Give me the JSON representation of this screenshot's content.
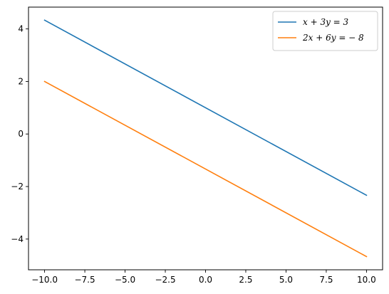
{
  "chart_data": {
    "type": "line",
    "title": "",
    "xlabel": "",
    "ylabel": "",
    "xlim": [
      -11.0,
      11.0
    ],
    "ylim": [
      -5.17,
      4.83
    ],
    "x_ticks": [
      -10.0,
      -7.5,
      -5.0,
      -2.5,
      0.0,
      2.5,
      5.0,
      7.5,
      10.0
    ],
    "x_tick_labels": [
      "−10.0",
      "−7.5",
      "−5.0",
      "−2.5",
      "0.0",
      "2.5",
      "5.0",
      "7.5",
      "10.0"
    ],
    "y_ticks": [
      -4,
      -2,
      0,
      2,
      4
    ],
    "y_tick_labels": [
      "−4",
      "−2",
      "0",
      "2",
      "4"
    ],
    "grid": false,
    "legend_position": "top-right",
    "series": [
      {
        "name": "x + 3y = 3",
        "color": "#1f77b4",
        "x": [
          -10,
          10
        ],
        "y": [
          4.333,
          -2.333
        ]
      },
      {
        "name": "2x + 6y = − 8",
        "color": "#ff7f0e",
        "x": [
          -10,
          10
        ],
        "y": [
          2.0,
          -4.667
        ]
      }
    ]
  }
}
